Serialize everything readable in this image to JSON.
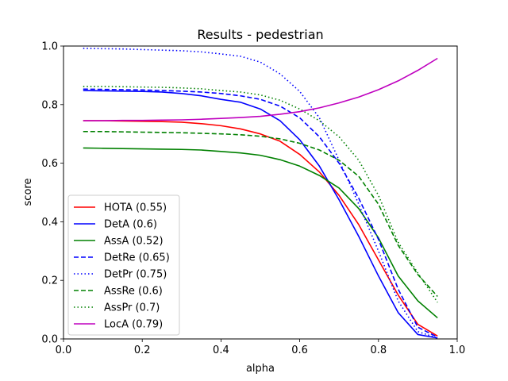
{
  "chart_data": {
    "type": "line",
    "title": "Results - pedestrian",
    "xlabel": "alpha",
    "ylabel": "score",
    "xlim": [
      0.0,
      1.0
    ],
    "ylim": [
      0.0,
      1.0
    ],
    "xticks": [
      "0.0",
      "0.2",
      "0.4",
      "0.6",
      "0.8",
      "1.0"
    ],
    "yticks": [
      "0.0",
      "0.2",
      "0.4",
      "0.6",
      "0.8",
      "1.0"
    ],
    "grid": false,
    "legend_position": "lower-left",
    "x": [
      0.05,
      0.1,
      0.15,
      0.2,
      0.25,
      0.3,
      0.35,
      0.4,
      0.45,
      0.5,
      0.55,
      0.6,
      0.65,
      0.7,
      0.75,
      0.8,
      0.85,
      0.9,
      0.95
    ],
    "series": [
      {
        "name": "HOTA (0.55)",
        "color": "#ff0000",
        "dash": "solid",
        "values": [
          0.745,
          0.745,
          0.744,
          0.743,
          0.742,
          0.74,
          0.735,
          0.728,
          0.717,
          0.7,
          0.675,
          0.63,
          0.57,
          0.49,
          0.39,
          0.27,
          0.15,
          0.05,
          0.01
        ]
      },
      {
        "name": "DetA (0.6)",
        "color": "#0000ff",
        "dash": "solid",
        "values": [
          0.848,
          0.847,
          0.846,
          0.845,
          0.843,
          0.838,
          0.83,
          0.818,
          0.808,
          0.785,
          0.745,
          0.68,
          0.59,
          0.475,
          0.35,
          0.215,
          0.09,
          0.015,
          0.003
        ]
      },
      {
        "name": "AssA (0.52)",
        "color": "#008000",
        "dash": "solid",
        "values": [
          0.652,
          0.651,
          0.65,
          0.649,
          0.648,
          0.647,
          0.645,
          0.64,
          0.635,
          0.627,
          0.612,
          0.59,
          0.558,
          0.515,
          0.445,
          0.345,
          0.215,
          0.13,
          0.072
        ]
      },
      {
        "name": "DetRe (0.65)",
        "color": "#0000ff",
        "dash": "dashed",
        "values": [
          0.853,
          0.852,
          0.851,
          0.85,
          0.848,
          0.846,
          0.843,
          0.838,
          0.83,
          0.818,
          0.795,
          0.755,
          0.69,
          0.6,
          0.48,
          0.34,
          0.17,
          0.04,
          0.006
        ]
      },
      {
        "name": "DetPr (0.75)",
        "color": "#0000ff",
        "dash": "dotted",
        "values": [
          0.992,
          0.991,
          0.99,
          0.988,
          0.986,
          0.984,
          0.98,
          0.973,
          0.965,
          0.945,
          0.905,
          0.845,
          0.755,
          0.61,
          0.46,
          0.3,
          0.13,
          0.025,
          0.003
        ]
      },
      {
        "name": "AssRe (0.6)",
        "color": "#008000",
        "dash": "dashed",
        "values": [
          0.708,
          0.708,
          0.707,
          0.706,
          0.705,
          0.704,
          0.702,
          0.7,
          0.697,
          0.692,
          0.683,
          0.668,
          0.645,
          0.61,
          0.555,
          0.46,
          0.32,
          0.22,
          0.145
        ]
      },
      {
        "name": "AssPr (0.7)",
        "color": "#008000",
        "dash": "dotted",
        "values": [
          0.862,
          0.862,
          0.861,
          0.86,
          0.859,
          0.857,
          0.854,
          0.848,
          0.843,
          0.833,
          0.815,
          0.785,
          0.745,
          0.69,
          0.61,
          0.49,
          0.33,
          0.225,
          0.125
        ]
      },
      {
        "name": "LocA (0.79)",
        "color": "#bf00bf",
        "dash": "solid",
        "values": [
          0.745,
          0.745,
          0.746,
          0.746,
          0.747,
          0.748,
          0.75,
          0.753,
          0.756,
          0.76,
          0.767,
          0.776,
          0.789,
          0.806,
          0.826,
          0.851,
          0.881,
          0.917,
          0.958
        ]
      }
    ]
  }
}
